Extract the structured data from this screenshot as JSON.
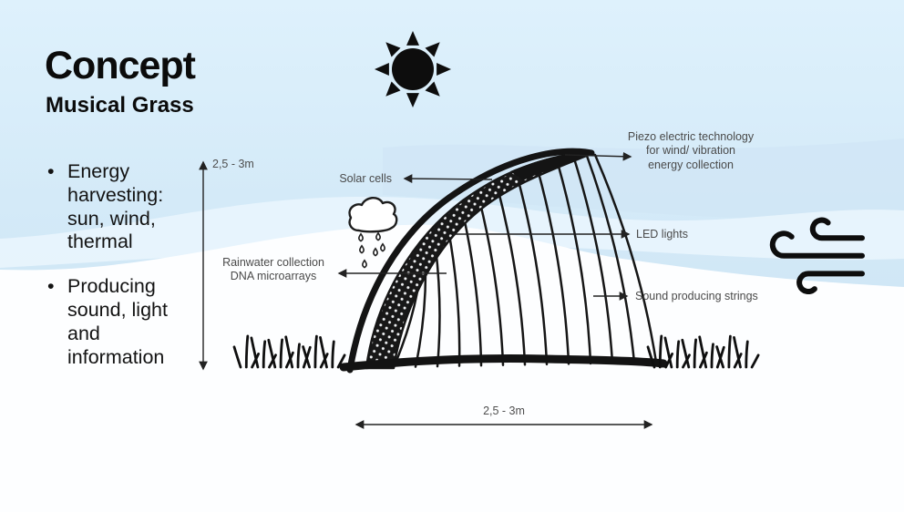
{
  "slide": {
    "title": "Concept",
    "subtitle": "Musical Grass"
  },
  "bullets": [
    {
      "text": "Energy harvesting: sun, wind, thermal"
    },
    {
      "text": "Producing sound, light and information"
    }
  ],
  "diagram": {
    "labels": {
      "solar": "Solar cells",
      "piezo": "Piezo electric technology\nfor wind/ vibration\nenergy collection",
      "led": "LED lights",
      "strings": "Sound producing strings",
      "rainwater": "Rainwater collection\nDNA microarrays"
    },
    "dimensions": {
      "height": "2,5 - 3m",
      "width": "2,5 - 3m"
    },
    "icons": [
      "sun-icon",
      "rain-cloud-icon",
      "wind-icon",
      "grass-icon"
    ]
  },
  "colors": {
    "ink": "#161616",
    "label_gray": "#4a4a4a",
    "background_top": "#dceffb",
    "background_mid": "#d2e8f6",
    "background_bottom": "#fdfeff"
  }
}
